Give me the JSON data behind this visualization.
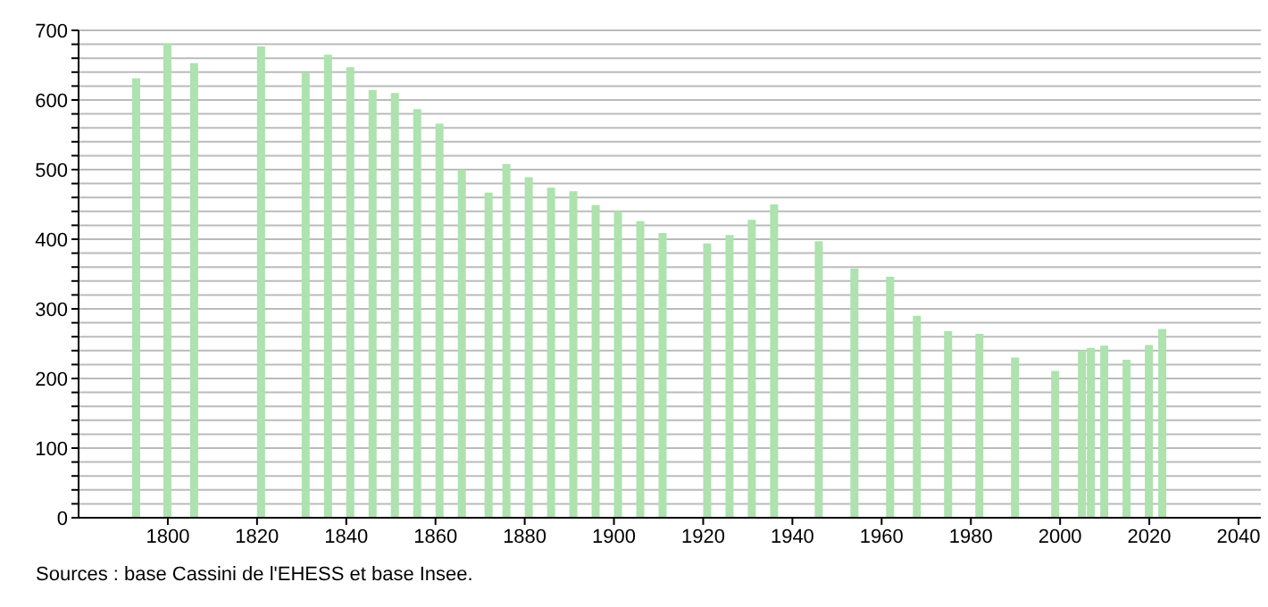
{
  "chart_data": {
    "type": "bar",
    "x": [
      1793,
      1800,
      1806,
      1821,
      1831,
      1836,
      1841,
      1846,
      1851,
      1856,
      1861,
      1866,
      1872,
      1876,
      1881,
      1886,
      1891,
      1896,
      1901,
      1906,
      1911,
      1921,
      1926,
      1931,
      1936,
      1946,
      1954,
      1962,
      1968,
      1975,
      1982,
      1990,
      1999,
      2005,
      2007,
      2010,
      2015,
      2020,
      2023
    ],
    "values": [
      631,
      681,
      653,
      677,
      639,
      665,
      647,
      614,
      610,
      587,
      566,
      500,
      467,
      508,
      489,
      474,
      469,
      449,
      440,
      426,
      409,
      394,
      406,
      428,
      450,
      397,
      358,
      346,
      290,
      268,
      264,
      230,
      211,
      240,
      244,
      247,
      227,
      248,
      271
    ],
    "color": "#aee2ae",
    "xlim": [
      1780,
      2045
    ],
    "xticks": [
      1800,
      1820,
      1840,
      1860,
      1880,
      1900,
      1920,
      1940,
      1960,
      1980,
      2000,
      2020,
      2040
    ],
    "ylim": [
      0,
      700
    ],
    "yticks": [
      0,
      {
        "value": 20,
        "label": null
      },
      {
        "value": 40,
        "label": null
      },
      {
        "value": 60,
        "label": null
      },
      {
        "value": 80,
        "label": null
      },
      100,
      {
        "value": 120,
        "label": null
      },
      {
        "value": 140,
        "label": null
      },
      {
        "value": 160,
        "label": null
      },
      {
        "value": 180,
        "label": null
      },
      200,
      {
        "value": 220,
        "label": null
      },
      {
        "value": 240,
        "label": null
      },
      {
        "value": 260,
        "label": null
      },
      {
        "value": 280,
        "label": null
      },
      300,
      {
        "value": 320,
        "label": null
      },
      {
        "value": 340,
        "label": null
      },
      {
        "value": 360,
        "label": null
      },
      {
        "value": 380,
        "label": null
      },
      400,
      {
        "value": 420,
        "label": null
      },
      {
        "value": 440,
        "label": null
      },
      {
        "value": 460,
        "label": null
      },
      {
        "value": 480,
        "label": null
      },
      500,
      {
        "value": 520,
        "label": null
      },
      {
        "value": 540,
        "label": null
      },
      {
        "value": 560,
        "label": null
      },
      {
        "value": 580,
        "label": null
      },
      600,
      {
        "value": 620,
        "label": null
      },
      {
        "value": 640,
        "label": null
      },
      {
        "value": 660,
        "label": null
      },
      {
        "value": 680,
        "label": null
      },
      700
    ],
    "grid": "y",
    "annotations": [
      "Sources : base Cassini de l'EHESS et base Insee."
    ]
  }
}
